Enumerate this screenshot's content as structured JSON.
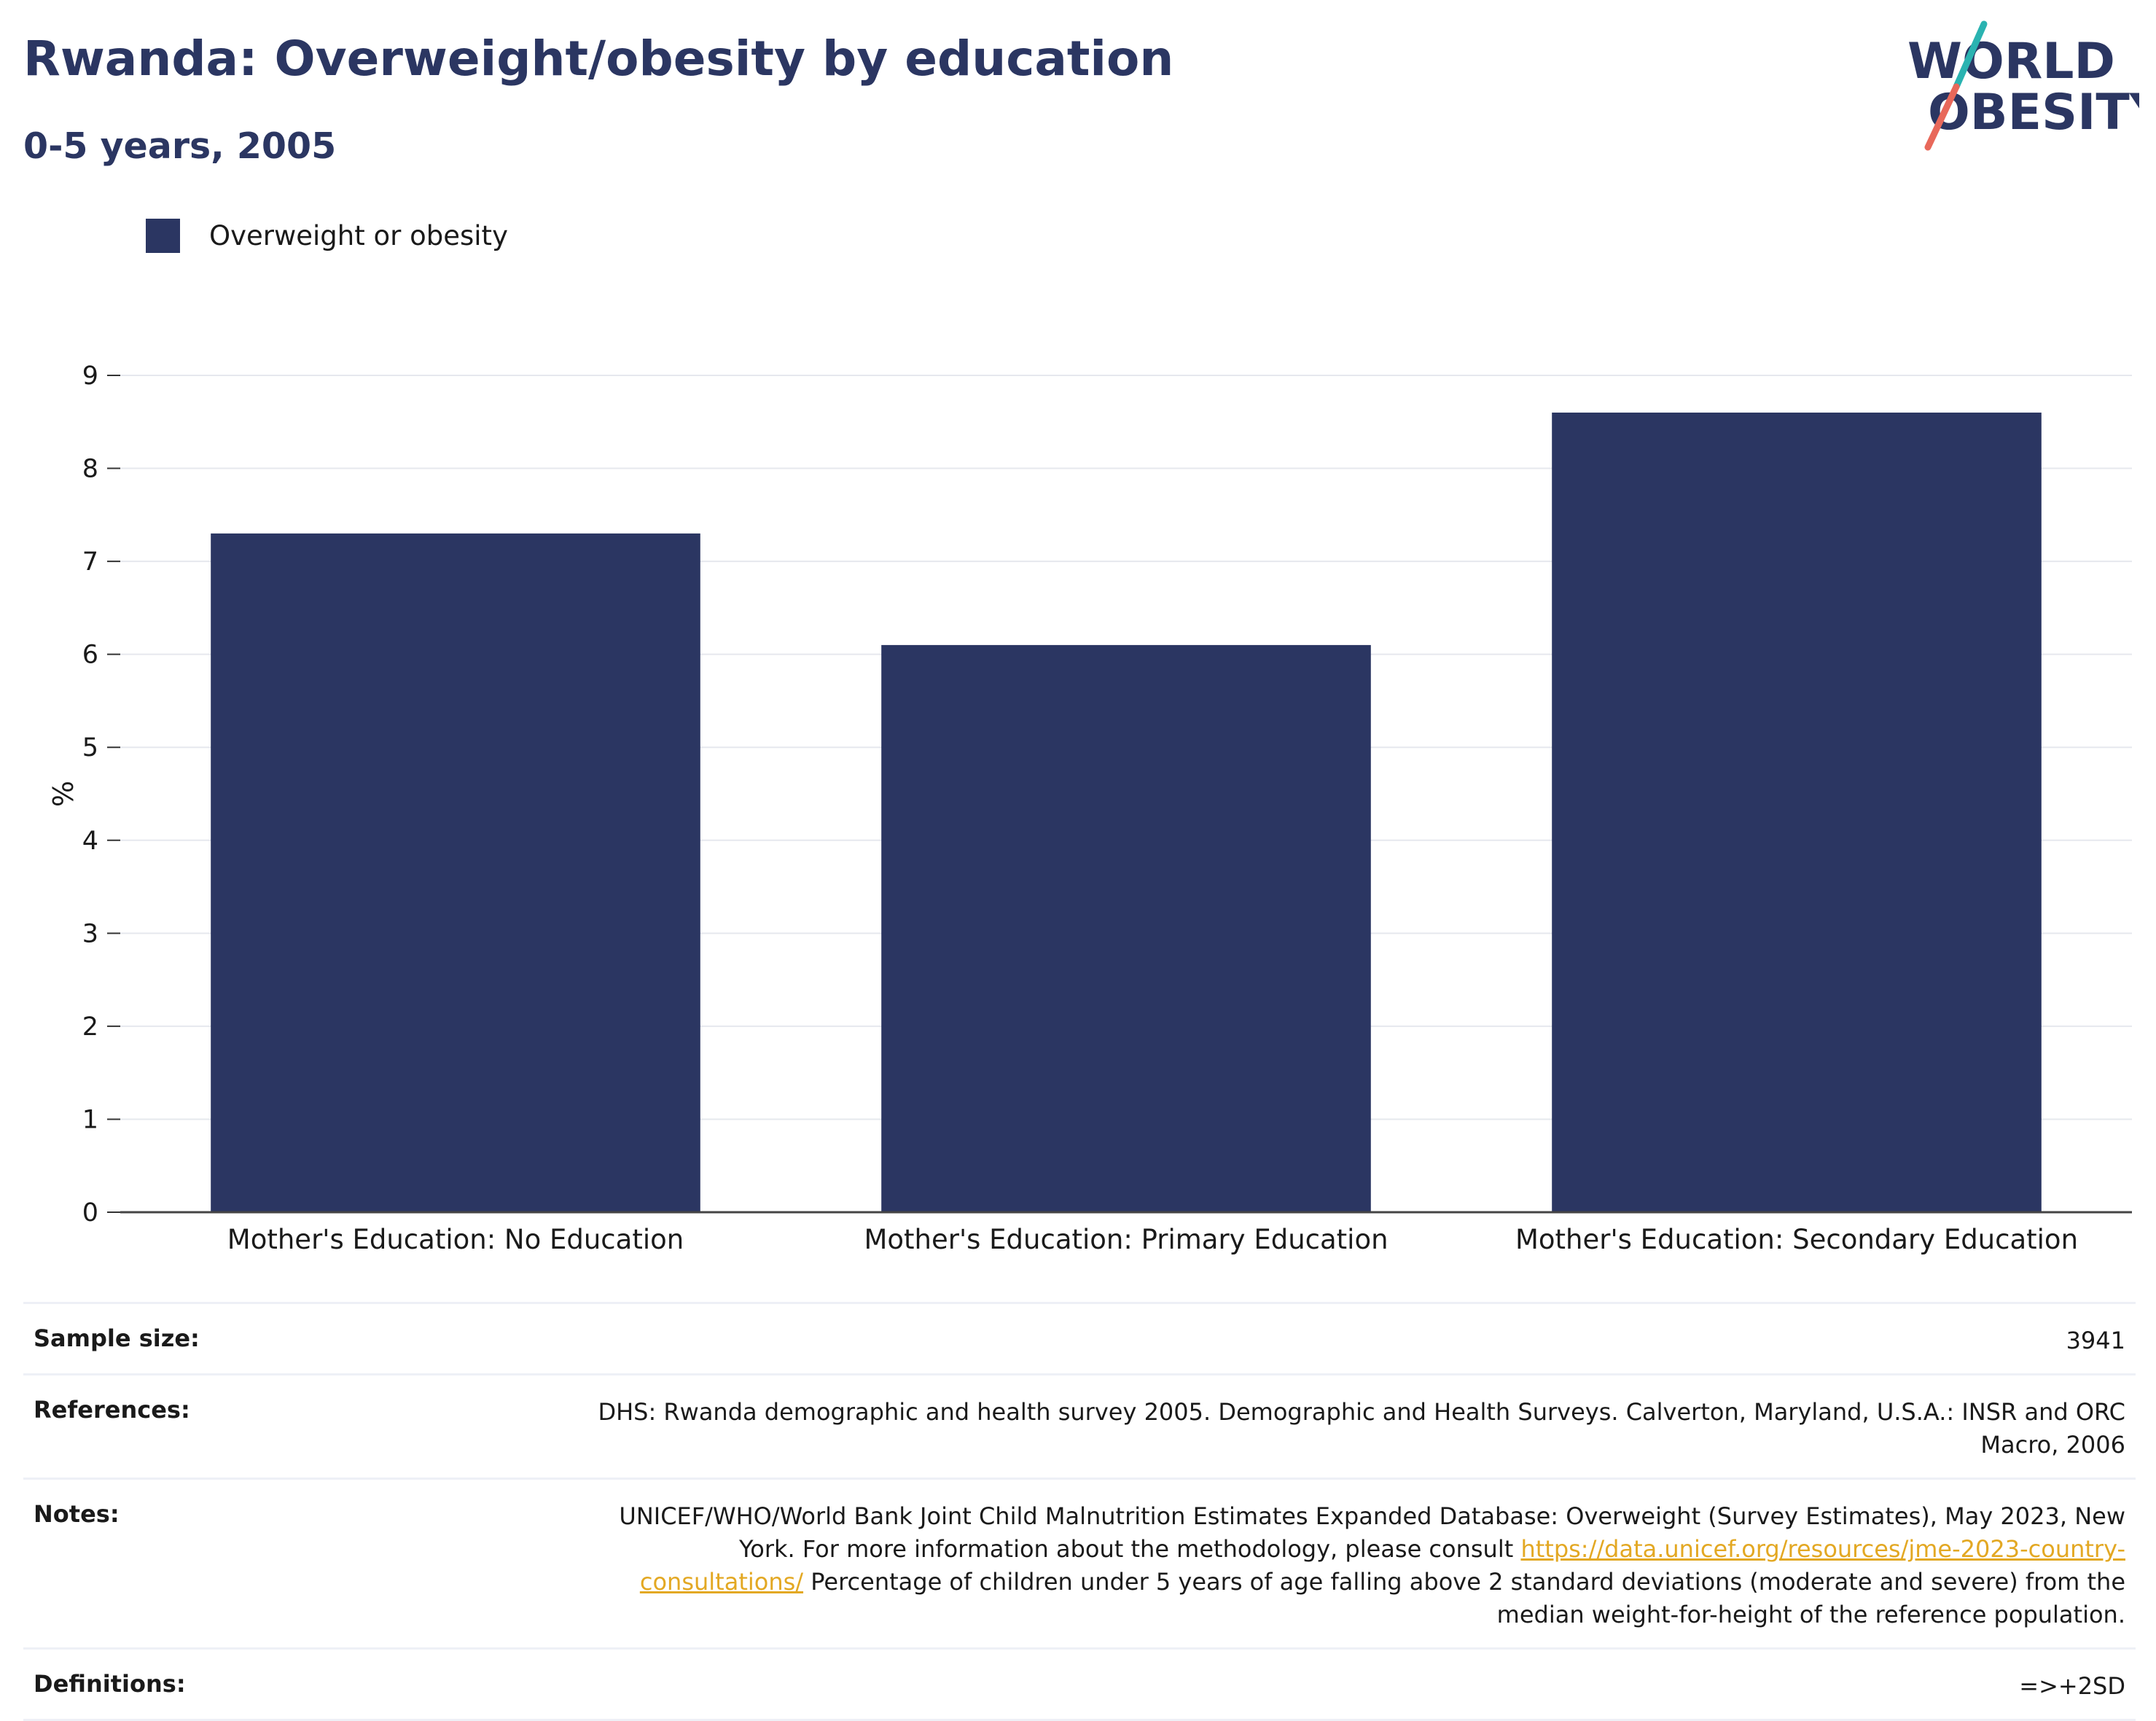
{
  "header": {
    "title": "Rwanda: Overweight/obesity by education",
    "subtitle": "0-5 years, 2005"
  },
  "logo": {
    "line1": "WORLD",
    "line2": "OBESITY",
    "colors": {
      "text": "#2b3662",
      "slash_top": "#2ab3b1",
      "slash_bottom": "#e8685a"
    }
  },
  "legend": {
    "label": "Overweight or obesity",
    "color": "#2b3662"
  },
  "chart_data": {
    "type": "bar",
    "categories": [
      "Mother's Education: No Education",
      "Mother's Education: Primary Education",
      "Mother's Education: Secondary Education"
    ],
    "series": [
      {
        "name": "Overweight or obesity",
        "values": [
          7.3,
          6.1,
          8.6
        ],
        "color": "#2b3662"
      }
    ],
    "ylabel": "%",
    "ylim": [
      0,
      9
    ],
    "yticks": [
      0,
      1,
      2,
      3,
      4,
      5,
      6,
      7,
      8,
      9
    ],
    "grid": true,
    "legend_position": "top-left"
  },
  "info_table": [
    {
      "label": "Sample size:",
      "value": "3941"
    },
    {
      "label": "References:",
      "value": "DHS: Rwanda demographic and health survey 2005. Demographic and Health Surveys. Calverton, Maryland, U.S.A.: INSR and ORC Macro, 2006"
    },
    {
      "label": "Notes:",
      "value_before_link": "UNICEF/WHO/World Bank Joint Child Malnutrition Estimates Expanded Database: Overweight (Survey Estimates), May 2023, New York. For more information about the methodology, please consult ",
      "link": "https://data.unicef.org/resources/jme-2023-country-consultations/",
      "value_after_link": " Percentage of children under 5 years of age falling above 2 standard deviations (moderate and severe) from the median weight-for-height of the reference population."
    },
    {
      "label": "Definitions:",
      "value": "=>+2SD"
    }
  ]
}
